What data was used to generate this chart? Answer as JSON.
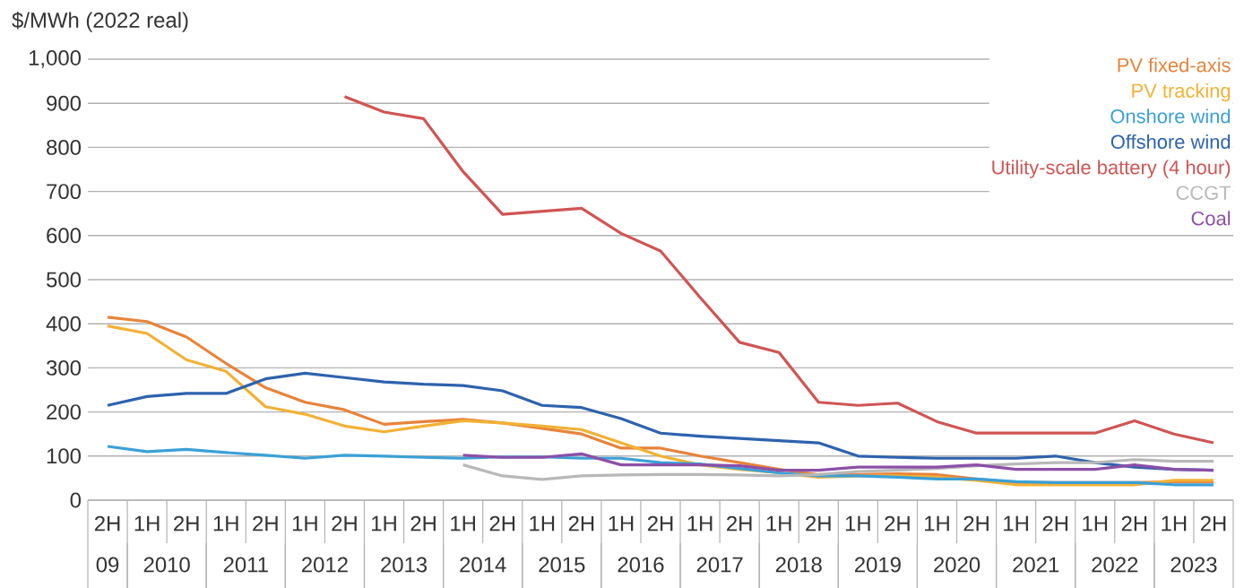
{
  "chart_data": {
    "type": "line",
    "ylabel": "$/MWh (2022 real)",
    "categories": [
      "2H",
      "1H",
      "2H",
      "1H",
      "2H",
      "1H",
      "2H",
      "1H",
      "2H",
      "1H",
      "2H",
      "1H",
      "2H",
      "1H",
      "2H",
      "1H",
      "2H",
      "1H",
      "2H",
      "1H",
      "2H",
      "1H",
      "2H",
      "1H",
      "2H",
      "1H",
      "2H",
      "1H",
      "2H"
    ],
    "annotations": [
      "09",
      "2010",
      "2011",
      "2012",
      "2013",
      "2014",
      "2015",
      "2016",
      "2017",
      "2018",
      "2019",
      "2020",
      "2021",
      "2022",
      "2023"
    ],
    "ylim": [
      0,
      1000
    ],
    "yticks": [
      0,
      100,
      200,
      300,
      400,
      500,
      600,
      700,
      800,
      900,
      {
        "value": 1000,
        "label": "1,000"
      }
    ],
    "grid": "y",
    "legend": "top right",
    "marker": "none",
    "line_style": "solid",
    "series": [
      {
        "name": "PV fixed-axis",
        "color": "#e8833a",
        "values": [
          415,
          405,
          370,
          310,
          255,
          222,
          205,
          172,
          178,
          183,
          175,
          163,
          150,
          118,
          118,
          100,
          85,
          70,
          58,
          58,
          60,
          58,
          48,
          40,
          40,
          40,
          40,
          42,
          42
        ]
      },
      {
        "name": "PV tracking",
        "color": "#f2b134",
        "values": [
          395,
          378,
          318,
          292,
          212,
          195,
          168,
          155,
          168,
          180,
          175,
          168,
          160,
          130,
          100,
          80,
          70,
          62,
          52,
          55,
          55,
          52,
          45,
          35,
          35,
          35,
          35,
          45,
          45
        ]
      },
      {
        "name": "Onshore wind",
        "color": "#3aa0d8",
        "values": [
          122,
          110,
          115,
          108,
          102,
          95,
          102,
          100,
          97,
          95,
          98,
          98,
          95,
          95,
          85,
          82,
          72,
          62,
          55,
          55,
          52,
          48,
          48,
          42,
          40,
          40,
          40,
          35,
          35
        ]
      },
      {
        "name": "Offshore wind",
        "color": "#2d62ae",
        "values": [
          215,
          235,
          242,
          242,
          275,
          288,
          278,
          268,
          263,
          260,
          248,
          215,
          210,
          185,
          152,
          145,
          140,
          135,
          130,
          100,
          97,
          95,
          95,
          95,
          100,
          85,
          75,
          70,
          68
        ]
      },
      {
        "name": "Utility-scale battery (4 hour)",
        "color": "#d05454",
        "values": [
          null,
          null,
          null,
          null,
          null,
          null,
          915,
          880,
          865,
          745,
          648,
          655,
          662,
          605,
          565,
          460,
          358,
          335,
          222,
          215,
          220,
          178,
          152,
          152,
          152,
          152,
          180,
          150,
          130
        ]
      },
      {
        "name": "CCGT",
        "color": "#b8b8b8",
        "values": [
          null,
          null,
          null,
          null,
          null,
          null,
          null,
          null,
          null,
          80,
          55,
          47,
          55,
          57,
          58,
          58,
          57,
          55,
          58,
          65,
          68,
          72,
          78,
          82,
          85,
          85,
          92,
          88,
          88
        ]
      },
      {
        "name": "Coal",
        "color": "#8c4fa8",
        "values": [
          null,
          null,
          null,
          null,
          null,
          null,
          null,
          null,
          null,
          102,
          97,
          97,
          105,
          80,
          80,
          80,
          78,
          68,
          68,
          75,
          75,
          75,
          80,
          70,
          70,
          70,
          80,
          70,
          68
        ]
      }
    ]
  }
}
